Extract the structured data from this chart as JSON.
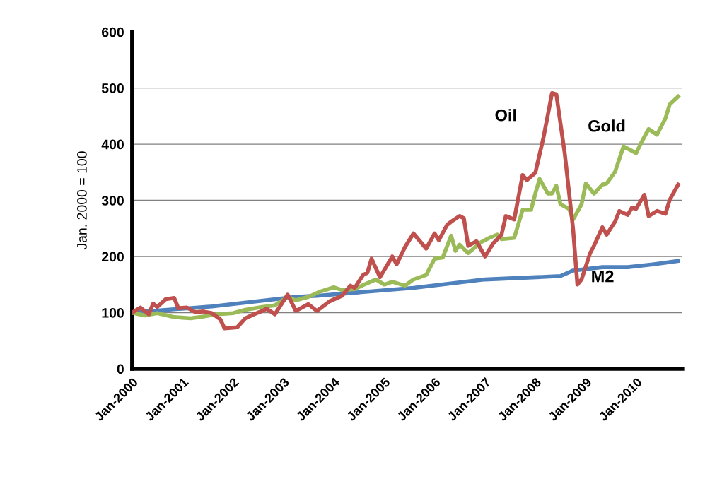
{
  "chart_data": {
    "type": "line",
    "ylabel": "Jan. 2000 = 100",
    "xlim": [
      "2000-01",
      "2010-12"
    ],
    "xticks": [
      {
        "value": "2000-01",
        "label": "Jan-2000"
      },
      {
        "value": "2001-01",
        "label": "Jan-2001"
      },
      {
        "value": "2002-01",
        "label": "Jan-2002"
      },
      {
        "value": "2003-01",
        "label": "Jan-2003"
      },
      {
        "value": "2004-01",
        "label": "Jan-2004"
      },
      {
        "value": "2005-01",
        "label": "Jan-2005"
      },
      {
        "value": "2006-01",
        "label": "Jan-2006"
      },
      {
        "value": "2007-01",
        "label": "Jan-2007"
      },
      {
        "value": "2008-01",
        "label": "Jan-2008"
      },
      {
        "value": "2009-01",
        "label": "Jan-2009"
      },
      {
        "value": "2010-01",
        "label": "Jan-2010"
      }
    ],
    "ylim": [
      0,
      600
    ],
    "yticks": [
      0,
      100,
      200,
      300,
      400,
      500,
      600
    ],
    "grid": "y",
    "legend": false,
    "marker": "none",
    "line_style": "solid",
    "series": [
      {
        "name": "Oil",
        "color": "#c0504d",
        "x": [
          "2000-01",
          "2000-03",
          "2000-05",
          "2000-06",
          "2000-07",
          "2000-09",
          "2000-11",
          "2000-12",
          "2001-02",
          "2001-04",
          "2001-06",
          "2001-08",
          "2001-10",
          "2001-11",
          "2002-02",
          "2002-04",
          "2002-06",
          "2002-08",
          "2002-09",
          "2002-11",
          "2003-02",
          "2003-04",
          "2003-07",
          "2003-09",
          "2003-12",
          "2004-03",
          "2004-05",
          "2004-06",
          "2004-08",
          "2004-09",
          "2004-10",
          "2004-12",
          "2005-03",
          "2005-04",
          "2005-06",
          "2005-08",
          "2005-11",
          "2006-01",
          "2006-02",
          "2006-04",
          "2006-05",
          "2006-07",
          "2006-08",
          "2006-09",
          "2006-11",
          "2007-01",
          "2007-03",
          "2007-05",
          "2007-06",
          "2007-08",
          "2007-10",
          "2007-11",
          "2008-01",
          "2008-03",
          "2008-05",
          "2008-06",
          "2008-08",
          "2008-10",
          "2008-11",
          "2008-12",
          "2009-02",
          "2009-03",
          "2009-05",
          "2009-06",
          "2009-08",
          "2009-09",
          "2009-11",
          "2009-12",
          "2010-01",
          "2010-03",
          "2010-04",
          "2010-06",
          "2010-08",
          "2010-09",
          "2010-11"
        ],
        "values": [
          100,
          109,
          97,
          116,
          110,
          124,
          126,
          108,
          109,
          101,
          102,
          99,
          88,
          72,
          74,
          90,
          97,
          103,
          107,
          97,
          132,
          103,
          115,
          103,
          120,
          130,
          148,
          144,
          167,
          171,
          196,
          163,
          200,
          186,
          217,
          241,
          214,
          241,
          229,
          256,
          262,
          272,
          268,
          219,
          227,
          200,
          223,
          239,
          272,
          266,
          345,
          336,
          349,
          413,
          491,
          489,
          384,
          248,
          150,
          159,
          206,
          219,
          252,
          239,
          262,
          281,
          274,
          287,
          285,
          310,
          272,
          281,
          276,
          301,
          328
        ]
      },
      {
        "name": "Gold",
        "color": "#9bbb59",
        "x": [
          "2000-01",
          "2000-04",
          "2000-07",
          "2000-11",
          "2001-03",
          "2001-06",
          "2001-09",
          "2002-01",
          "2002-04",
          "2002-08",
          "2002-11",
          "2003-02",
          "2003-04",
          "2003-07",
          "2003-10",
          "2004-01",
          "2004-03",
          "2004-06",
          "2004-08",
          "2004-11",
          "2005-01",
          "2005-03",
          "2005-06",
          "2005-08",
          "2005-11",
          "2006-01",
          "2006-03",
          "2006-05",
          "2006-06",
          "2006-07",
          "2006-09",
          "2006-12",
          "2007-02",
          "2007-04",
          "2007-05",
          "2007-08",
          "2007-10",
          "2007-12",
          "2008-01",
          "2008-02",
          "2008-04",
          "2008-05",
          "2008-06",
          "2008-07",
          "2008-09",
          "2008-10",
          "2008-12",
          "2009-01",
          "2009-03",
          "2009-05",
          "2009-06",
          "2009-08",
          "2009-10",
          "2010-01",
          "2010-02",
          "2010-04",
          "2010-06",
          "2010-08",
          "2010-09",
          "2010-11"
        ],
        "values": [
          100,
          95,
          99,
          92,
          90,
          93,
          97,
          99,
          105,
          110,
          113,
          128,
          122,
          128,
          138,
          145,
          140,
          142,
          149,
          159,
          150,
          155,
          148,
          159,
          167,
          196,
          198,
          237,
          210,
          221,
          206,
          225,
          233,
          239,
          231,
          233,
          283,
          283,
          312,
          338,
          312,
          312,
          326,
          293,
          285,
          266,
          293,
          330,
          312,
          328,
          330,
          351,
          396,
          384,
          400,
          427,
          417,
          446,
          471,
          485
        ]
      },
      {
        "name": "M2",
        "color": "#4f81bd",
        "x": [
          "2000-01",
          "2000-06",
          "2001-08",
          "2003-04",
          "2003-09",
          "2005-08",
          "2007-01",
          "2008-07",
          "2008-10",
          "2009-05",
          "2009-11",
          "2010-05",
          "2010-11"
        ],
        "values": [
          100,
          103,
          111,
          128,
          130,
          144,
          159,
          165,
          175,
          181,
          181,
          186,
          192
        ]
      }
    ]
  }
}
